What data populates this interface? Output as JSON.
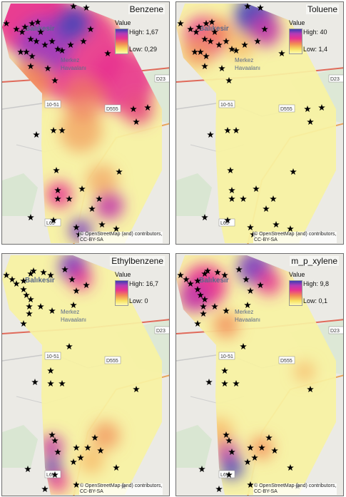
{
  "legend_label": "Value",
  "attribution_line1": "© OpenStreetMap (and) contributors,",
  "attribution_line2": "CC-BY-SA",
  "basemap_labels": {
    "city": "Balıkesir",
    "district": "Merkez",
    "airport": "Havaalanı",
    "road_d555": "D555",
    "road_1051": "10-51",
    "road_d23": "D23",
    "road_l65": "L65"
  },
  "colors": {
    "ramp_high": "#3a3fb0",
    "ramp_mid": "#e8348f",
    "ramp_low": "#fdfbb0",
    "station_marker": "#000000"
  },
  "panels": [
    {
      "title": "Benzene",
      "high_label": "High: 1,67",
      "low_label": "Low: 0,29"
    },
    {
      "title": "Toluene",
      "high_label": "High: 40",
      "low_label": "Low: 1,4"
    },
    {
      "title": "Ethylbenzene",
      "high_label": "High: 16,7",
      "low_label": "Low: 0"
    },
    {
      "title": "m_p_xylene",
      "high_label": "High: 9,8",
      "low_label": "Low: 0,1"
    }
  ]
}
